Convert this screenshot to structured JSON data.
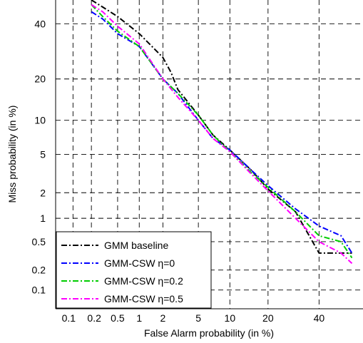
{
  "chart_data": {
    "type": "line",
    "scale": "normal-deviate (DET)",
    "xlabel": "False Alarm probability (in %)",
    "ylabel": "Miss probability (in %)",
    "xlim": [
      0.05,
      60
    ],
    "ylim": [
      0.05,
      50
    ],
    "xticks": [
      "0.1",
      "0.2",
      "0.5",
      "1",
      "2",
      "5",
      "10",
      "20",
      "40"
    ],
    "yticks": [
      "0.1",
      "0.2",
      "0.5",
      "1",
      "2",
      "5",
      "10",
      "20",
      "40"
    ],
    "grid": true,
    "legend_position": "bottom-left",
    "series": [
      {
        "name": "GMM baseline",
        "color": "#000000",
        "x": [
          0.2,
          0.3,
          0.5,
          1,
          2,
          2.5,
          3,
          5,
          7,
          10,
          15,
          20,
          30,
          40,
          45,
          55
        ],
        "y": [
          50,
          47,
          43,
          36,
          27,
          22,
          17,
          11,
          7.5,
          5.5,
          3.5,
          2.2,
          1.2,
          0.35,
          0.35,
          0.35
        ]
      },
      {
        "name": "GMM-CSW η=0",
        "color": "#0000ff",
        "x": [
          0.2,
          0.3,
          0.5,
          1,
          2,
          3,
          5,
          7,
          10,
          15,
          20,
          30,
          40,
          50,
          55
        ],
        "y": [
          45,
          42,
          36,
          31,
          20,
          16,
          10,
          7,
          5.5,
          3.5,
          2.4,
          1.3,
          0.8,
          0.6,
          0.35
        ]
      },
      {
        "name": "GMM-CSW η=0.2",
        "color": "#00cc00",
        "x": [
          0.2,
          0.3,
          0.5,
          1,
          2,
          3,
          5,
          7,
          10,
          15,
          20,
          30,
          40,
          50,
          55
        ],
        "y": [
          48,
          43,
          37,
          31,
          20,
          16,
          11,
          7.5,
          5.3,
          3.3,
          2.3,
          1.2,
          0.6,
          0.5,
          0.3
        ]
      },
      {
        "name": "GMM-CSW η=0.5",
        "color": "#ff00ff",
        "x": [
          0.2,
          0.3,
          0.5,
          1,
          2,
          3,
          5,
          7,
          10,
          15,
          20,
          30,
          40,
          50,
          55
        ],
        "y": [
          48,
          45,
          39,
          32,
          20,
          15,
          10,
          7,
          5.3,
          3.2,
          2.1,
          1.0,
          0.5,
          0.35,
          0.25
        ]
      }
    ]
  }
}
